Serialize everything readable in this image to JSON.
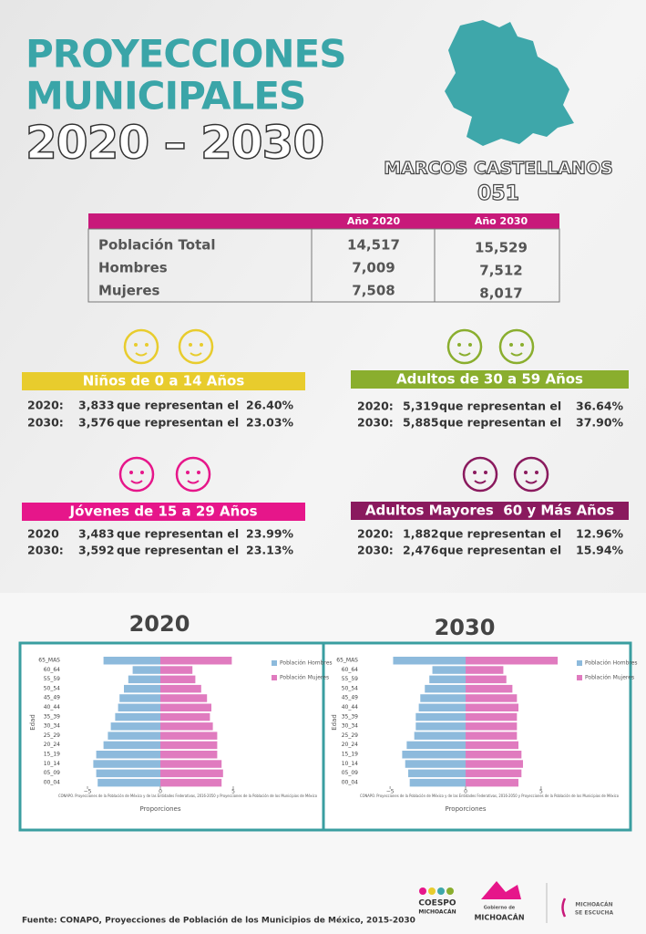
{
  "header": {
    "title": [
      "PROYECCIONES",
      "MUNICIPALES",
      "2020 – 2030"
    ],
    "municipality": "MARCOS CASTELLANOS",
    "code": "051"
  },
  "table": {
    "columns": [
      "Año 2020",
      "Año 2030"
    ],
    "rows": [
      [
        "Población Total",
        "14,517",
        "15,529"
      ],
      [
        "Hombres",
        "7,009",
        "7,512"
      ],
      [
        "Mujeres",
        "7,508",
        "8,017"
      ]
    ]
  },
  "groups": [
    {
      "title": "Niños de 0 a 14 Años",
      "color": "#e8cc2d",
      "lines": [
        [
          "2020:",
          "3,833",
          "que representan el",
          "26.40%"
        ],
        [
          "2030:",
          "3,576",
          "que representan el",
          "23.03%"
        ]
      ]
    },
    {
      "title": "Adultos de 30 a 59 Años",
      "color": "#8aae2e",
      "lines": [
        [
          "2020:",
          "5,319",
          "que representan el",
          "36.64%"
        ],
        [
          "2030:",
          "5,885",
          "que representan el",
          "37.90%"
        ]
      ]
    },
    {
      "title": "Jóvenes de 15 a 29 Años",
      "color": "#e6168a",
      "lines": [
        [
          "2020",
          "3,483",
          "que representan el",
          "23.99%"
        ],
        [
          "2030:",
          "3,592",
          "que representan el",
          "23.13%"
        ]
      ]
    },
    {
      "title": "Adultos Mayores  60 y Más Años",
      "color": "#8a1a5e",
      "lines": [
        [
          "2020:",
          "1,882",
          "que representan el",
          "12.96%"
        ],
        [
          "2030:",
          "2,476",
          "que representan el",
          "15.94%"
        ]
      ]
    }
  ],
  "chart_data": [
    {
      "type": "pyramid",
      "title": "2020",
      "x_label": "Proporciones",
      "y_label": "Edad",
      "note": "CONAPO. Proyecciones de la Población de México y de las Entidades Federativas, 2016-2050 y Proyecciones de la Población de los Municipios de México",
      "categories": [
        "65_MAS",
        "60_64",
        "55_59",
        "50_54",
        "45_49",
        "40_44",
        "35_39",
        "30_34",
        "25_29",
        "20_24",
        "15_19",
        "10_14",
        "05_09",
        "00_04"
      ],
      "series": [
        {
          "name": "Población Hombres",
          "color": "#8dbadc",
          "values": [
            -3.9,
            -1.9,
            -2.2,
            -2.5,
            -2.8,
            -2.9,
            -3.1,
            -3.4,
            -3.6,
            -3.9,
            -4.4,
            -4.6,
            -4.4,
            -4.3
          ]
        },
        {
          "name": "Población Mujeres",
          "color": "#e07bbf",
          "values": [
            4.9,
            2.2,
            2.4,
            2.8,
            3.2,
            3.5,
            3.4,
            3.6,
            3.9,
            3.9,
            3.9,
            4.2,
            4.3,
            4.2
          ]
        }
      ],
      "xlim": [
        -7,
        7
      ],
      "xticks": [
        {
          "value": -5,
          "label": "−5"
        },
        0,
        5
      ]
    },
    {
      "type": "pyramid",
      "title": "2030",
      "x_label": "Proporciones",
      "y_label": "Edad",
      "note": "CONAPO. Proyecciones de la Población de México y de las Entidades Federativas, 2016-2050 y Proyecciones de la Población de los Municipios de México",
      "categories": [
        "65_MAS",
        "60_64",
        "55_59",
        "50_54",
        "45_49",
        "40_44",
        "35_39",
        "30_34",
        "25_29",
        "20_24",
        "15_19",
        "10_14",
        "05_09",
        "00_04"
      ],
      "series": [
        {
          "name": "Población Hombres",
          "color": "#8dbadc",
          "values": [
            -4.8,
            -2.2,
            -2.4,
            -2.7,
            -3.0,
            -3.1,
            -3.3,
            -3.3,
            -3.4,
            -3.9,
            -4.2,
            -4.0,
            -3.8,
            -3.7
          ]
        },
        {
          "name": "Población Mujeres",
          "color": "#e07bbf",
          "values": [
            6.1,
            2.5,
            2.7,
            3.1,
            3.4,
            3.5,
            3.4,
            3.4,
            3.4,
            3.5,
            3.7,
            3.8,
            3.7,
            3.5
          ]
        }
      ],
      "xlim": [
        -7,
        7
      ],
      "xticks": [
        {
          "value": -5,
          "label": "−5"
        },
        0,
        5
      ]
    }
  ],
  "footer": {
    "source": "Fuente: CONAPO, Proyecciones de Población de los Municipios de México, 2015-2030",
    "logos": [
      "COESPO",
      "MICHOACÁN",
      "Gobierno de",
      "MICHOACÁN",
      "MICHOACÁN",
      "SE ESCUCHA"
    ]
  }
}
